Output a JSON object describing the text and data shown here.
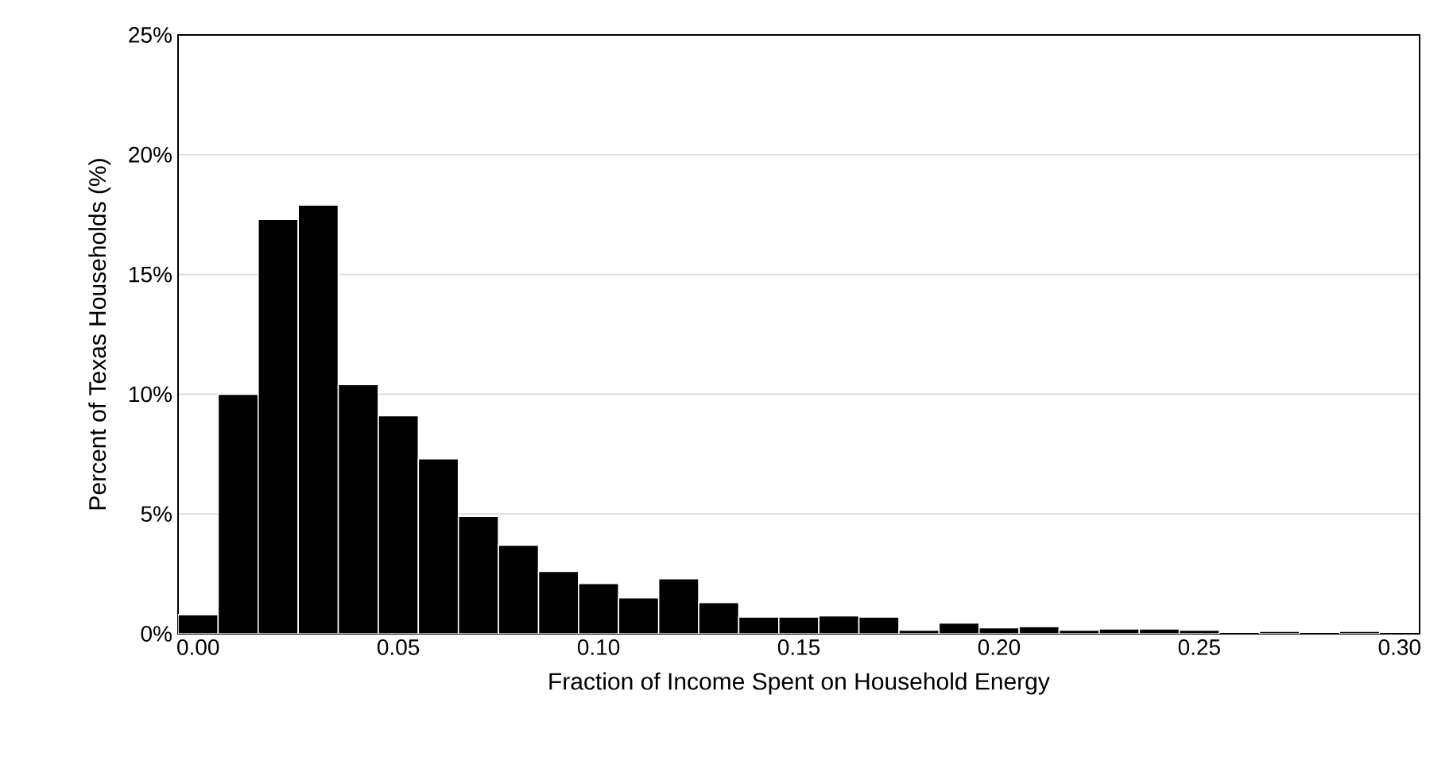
{
  "chart_data": {
    "type": "histogram",
    "xlabel": "Fraction of Income Spent on Household Energy",
    "ylabel": "Percent of Texas Households (%)",
    "bins": [
      -0.005,
      0.005,
      0.015,
      0.025,
      0.035,
      0.045,
      0.055,
      0.065,
      0.075,
      0.085,
      0.095,
      0.105,
      0.115,
      0.125,
      0.135,
      0.145,
      0.155,
      0.165,
      0.175,
      0.185,
      0.195,
      0.205,
      0.215,
      0.225,
      0.235,
      0.245,
      0.255,
      0.265,
      0.275,
      0.285,
      0.295,
      0.305
    ],
    "values": [
      0.8,
      10.0,
      17.3,
      17.9,
      10.4,
      9.1,
      7.3,
      4.9,
      3.7,
      2.6,
      2.1,
      1.5,
      2.3,
      1.3,
      0.7,
      0.7,
      0.75,
      0.7,
      0.15,
      0.45,
      0.25,
      0.3,
      0.15,
      0.2,
      0.2,
      0.15,
      null,
      0.1,
      null,
      0.1,
      null
    ],
    "color": "#000000",
    "xlim": [
      -0.005,
      0.305
    ],
    "xticks": [
      {
        "value": 0,
        "label": "0.00"
      },
      {
        "value": 0.05,
        "label": "0.05"
      },
      {
        "value": 0.1,
        "label": "0.10"
      },
      {
        "value": 0.15,
        "label": "0.15"
      },
      {
        "value": 0.2,
        "label": "0.20"
      },
      {
        "value": 0.25,
        "label": "0.25"
      },
      {
        "value": 0.3,
        "label": "0.30"
      }
    ],
    "ylim": [
      0,
      25
    ],
    "yticks": [
      {
        "value": 0,
        "label": "0%"
      },
      {
        "value": 5,
        "label": "5%"
      },
      {
        "value": 10,
        "label": "10%"
      },
      {
        "value": 15,
        "label": "15%"
      },
      {
        "value": 20,
        "label": "20%"
      },
      {
        "value": 25,
        "label": "25%"
      }
    ],
    "grid": "y"
  }
}
